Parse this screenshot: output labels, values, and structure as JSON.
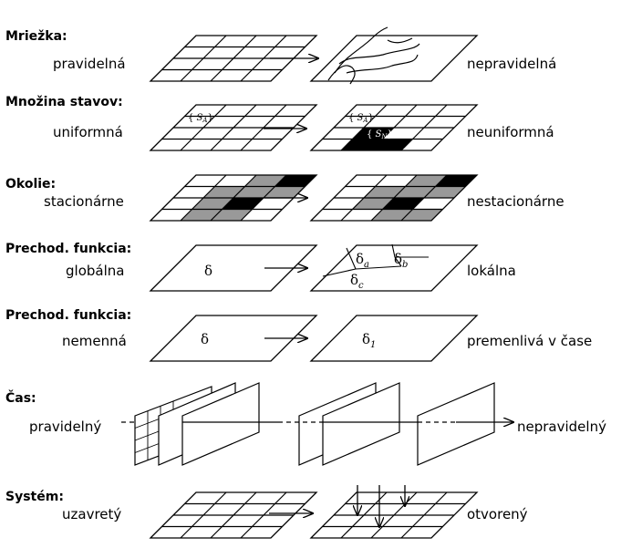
{
  "rows": [
    {
      "heading": "Mriežka:",
      "left": "pravidelná",
      "right": "nepravidelná"
    },
    {
      "heading": "Množina stavov:",
      "left": "uniformná",
      "right": "neuniformná"
    },
    {
      "heading": "Okolie:",
      "left": "stacionárne",
      "right": "nestacionárne"
    },
    {
      "heading": "Prechod. funkcia:",
      "left": "globálna",
      "right": "lokálna"
    },
    {
      "heading": "Prechod. funkcia:",
      "left": "nemenná",
      "right": "premenlivá v čase"
    },
    {
      "heading": "Čas:",
      "left": "pravidelný",
      "right": "nepravidelný"
    },
    {
      "heading": "Systém:",
      "left": "uzavretý",
      "right": "otvorený"
    }
  ],
  "symbols": {
    "s": "S",
    "sub_a": "A",
    "sub_n": "N",
    "delta": "δ",
    "sub_delta_a": "a",
    "sub_delta_b": "b",
    "sub_delta_c": "c",
    "sub_delta_1": "1"
  }
}
